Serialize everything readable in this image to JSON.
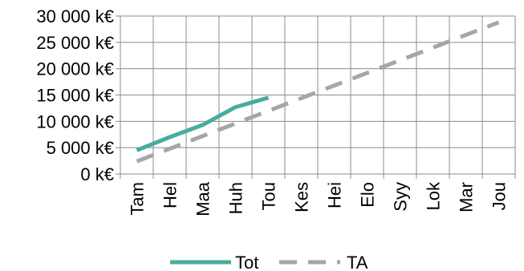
{
  "chart_data": {
    "type": "line",
    "title": "",
    "xlabel": "",
    "ylabel": "",
    "categories": [
      "Tam",
      "Hel",
      "Maa",
      "Huh",
      "Tou",
      "Kes",
      "Hei",
      "Elo",
      "Syy",
      "Lok",
      "Mar",
      "Jou"
    ],
    "y_ticks": [
      0,
      5000,
      10000,
      15000,
      20000,
      25000,
      30000
    ],
    "y_tick_labels": [
      "0 k€",
      "5 000 k€",
      "10 000 k€",
      "15 000 k€",
      "20 000 k€",
      "25 000 k€",
      "30 000 k€"
    ],
    "ylim": [
      0,
      30000
    ],
    "grid": true,
    "legend_position": "bottom",
    "series": [
      {
        "name": "Tot",
        "color": "#4aaba0",
        "style": "solid",
        "values": [
          4500,
          7000,
          9300,
          12700,
          14500,
          null,
          null,
          null,
          null,
          null,
          null,
          null
        ]
      },
      {
        "name": "TA",
        "color": "#a6a6a6",
        "style": "dashed",
        "values": [
          2400,
          4800,
          7200,
          9600,
          12000,
          14400,
          16800,
          19200,
          21600,
          24000,
          26400,
          28800
        ]
      }
    ]
  }
}
